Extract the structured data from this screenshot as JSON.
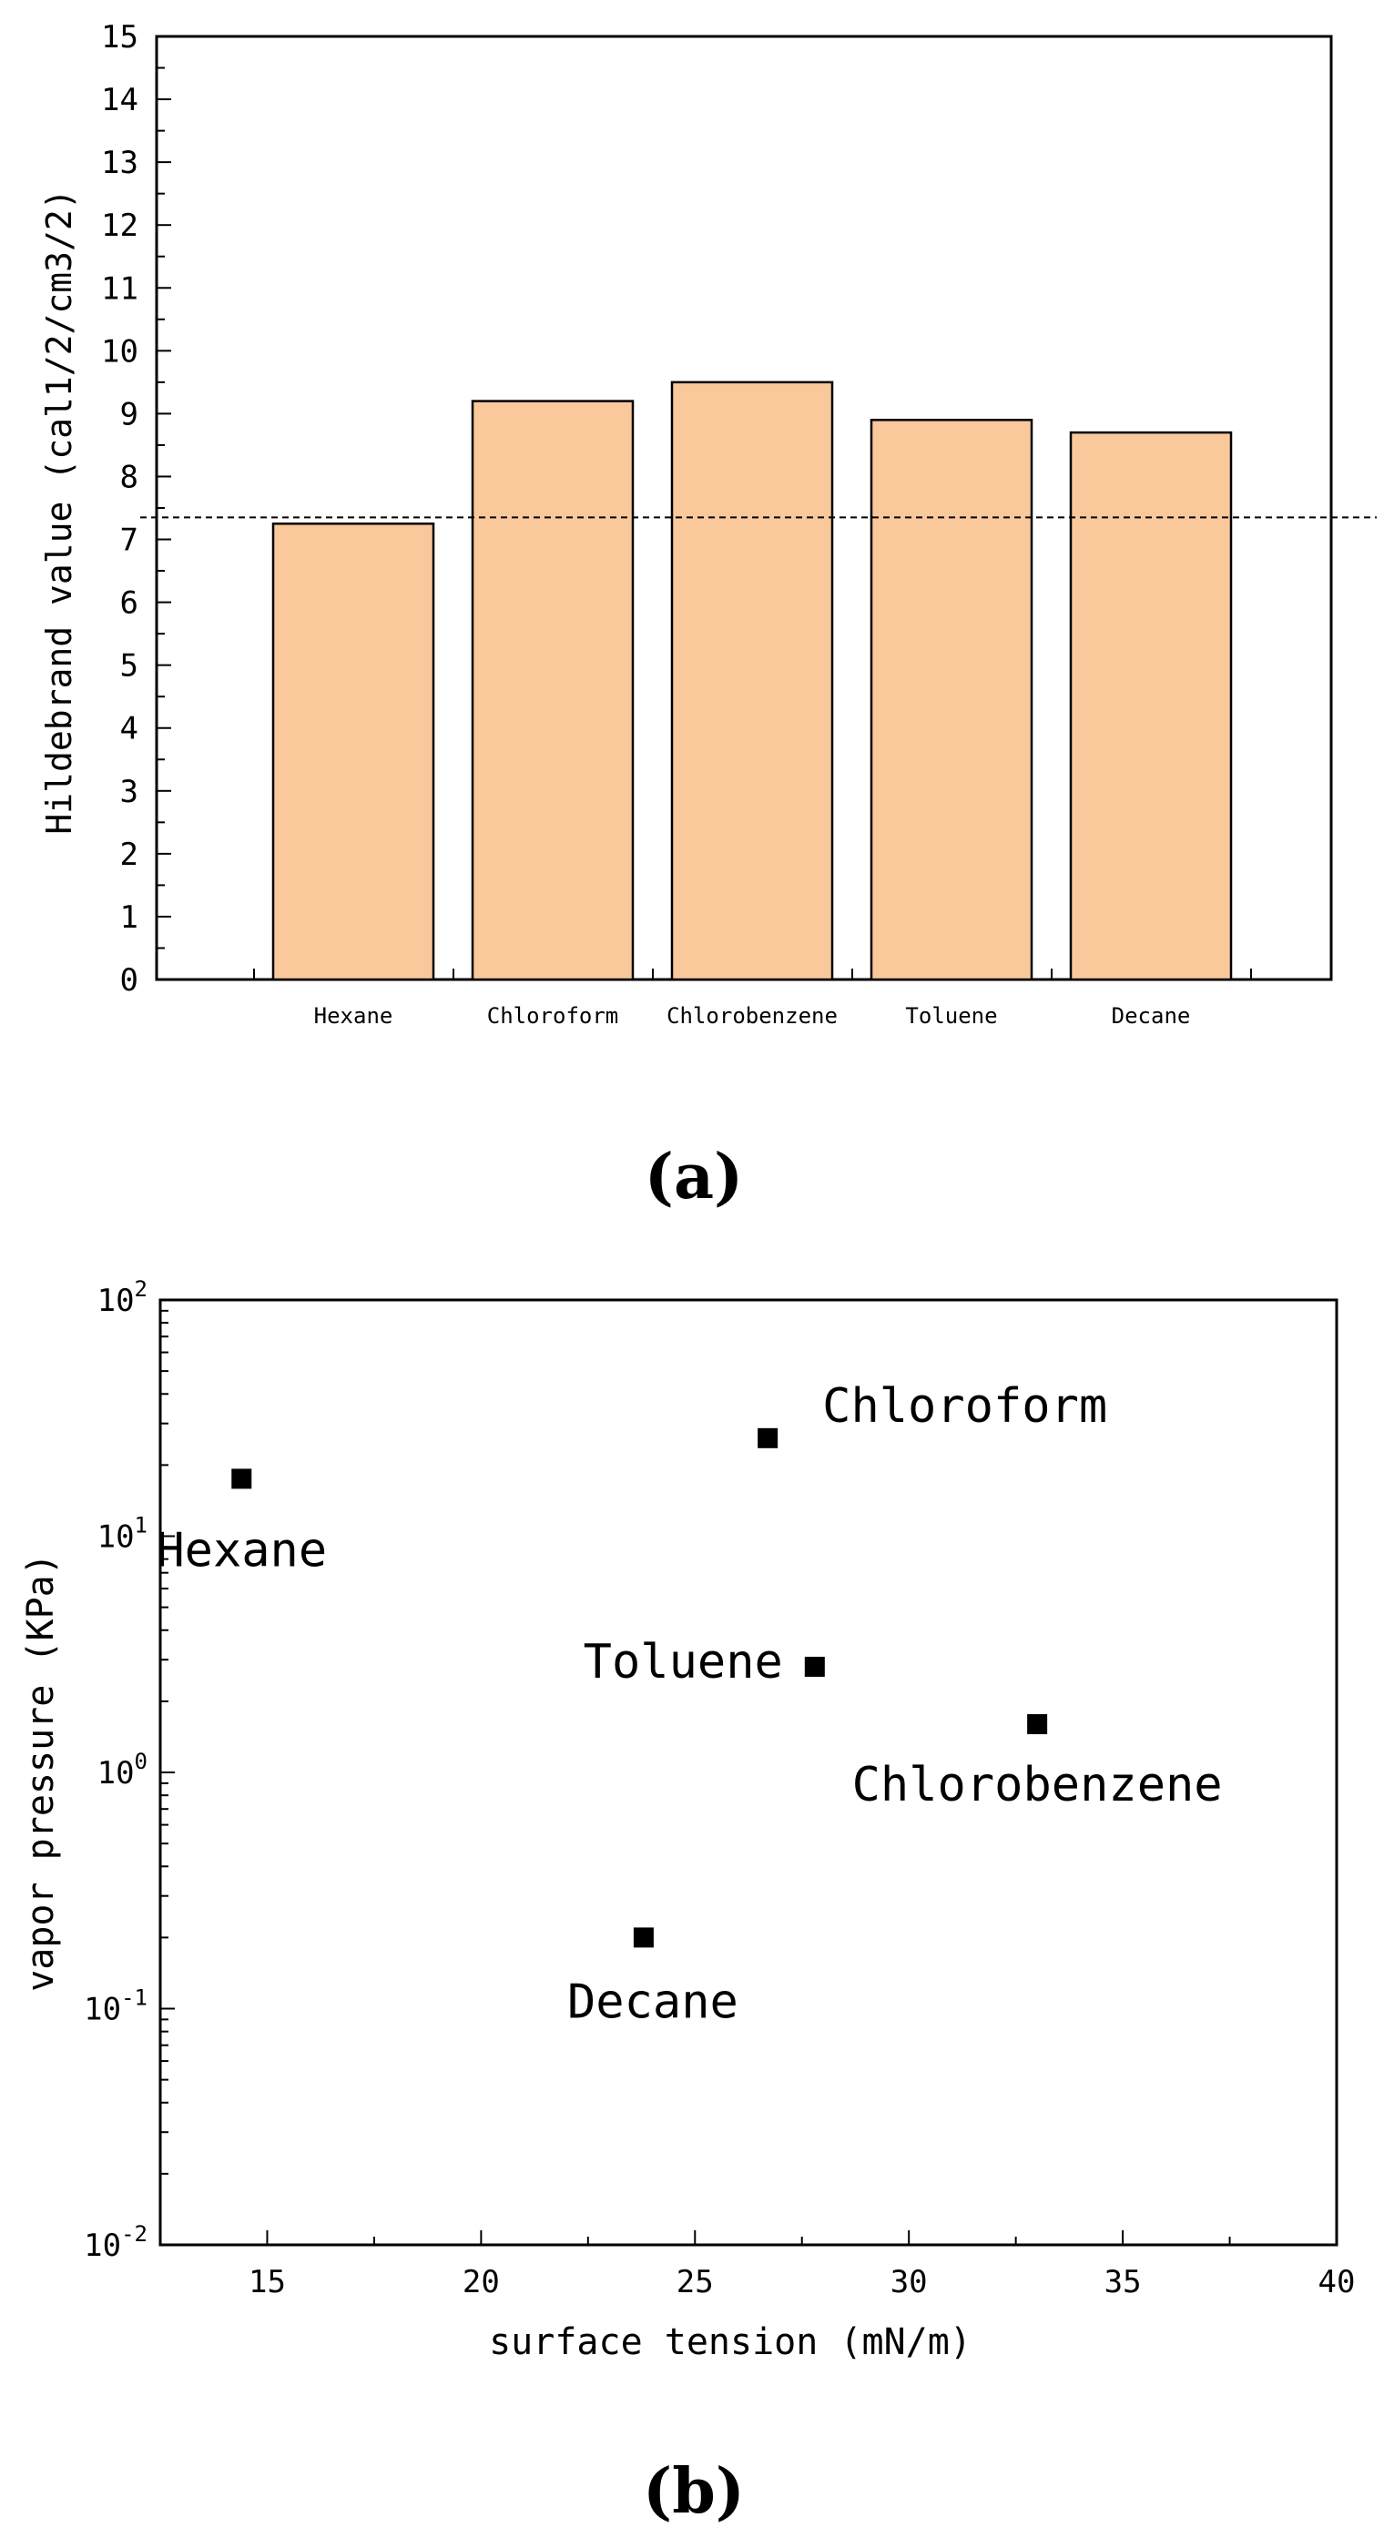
{
  "chart_data": [
    {
      "type": "bar",
      "panel_label": "(a)",
      "title": "",
      "xlabel": "",
      "ylabel": "Hildebrand value (cal1/2/cm3/2)",
      "categories": [
        "Hexane",
        "Chloroform",
        "Chlorobenzene",
        "Toluene",
        "Decane"
      ],
      "values": [
        7.25,
        9.2,
        9.5,
        8.9,
        8.7
      ],
      "ylim": [
        0,
        15
      ],
      "yticks": [
        "0",
        "1",
        "2",
        "3",
        "4",
        "5",
        "6",
        "7",
        "8",
        "9",
        "10",
        "11",
        "12",
        "13",
        "14",
        "15"
      ],
      "reference_line": {
        "y": 7.35,
        "style": "dashed"
      },
      "bar_color": "#f9c89b",
      "grid": false
    },
    {
      "type": "scatter",
      "panel_label": "(b)",
      "title": "",
      "xlabel": "surface tension (mN/m)",
      "ylabel": "vapor pressure (KPa)",
      "yscale": "log",
      "xlim": [
        12.5,
        40
      ],
      "ylim": [
        0.01,
        100
      ],
      "xticks": [
        "15",
        "20",
        "25",
        "30",
        "35",
        "40"
      ],
      "ytick_exponents": [
        "2",
        "1",
        "0",
        "-1",
        "-2"
      ],
      "ytick_base": "10",
      "points": [
        {
          "label": "Hexane",
          "x": 14.4,
          "y": 17.5
        },
        {
          "label": "Chloroform",
          "x": 26.7,
          "y": 26
        },
        {
          "label": "Toluene",
          "x": 27.8,
          "y": 2.8
        },
        {
          "label": "Chlorobenzene",
          "x": 33.0,
          "y": 1.6
        },
        {
          "label": "Decane",
          "x": 23.8,
          "y": 0.2
        }
      ],
      "marker_color": "#000000",
      "grid": false
    }
  ]
}
